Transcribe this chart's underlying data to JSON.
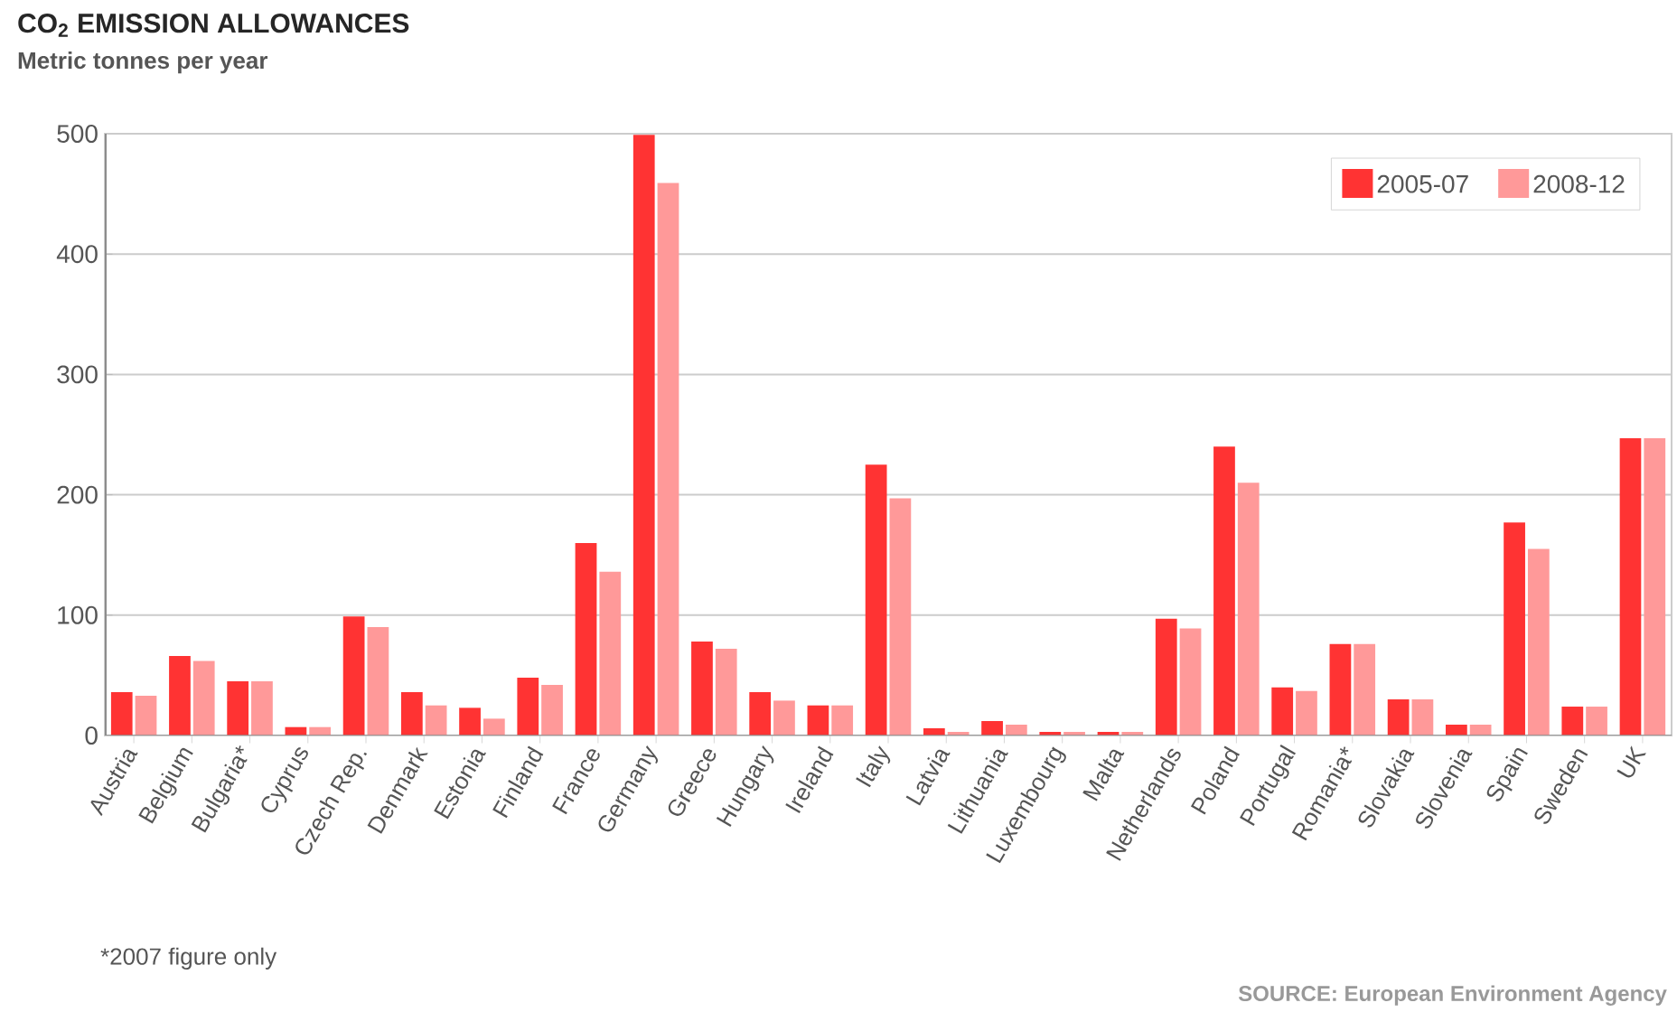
{
  "chart_data": {
    "type": "bar",
    "title": "CO$_{2}$ EMISSION ALLOWANCES",
    "subtitle": "Metric tonnes per year",
    "categories": [
      "Austria",
      "Belgium",
      "Bulgaria*",
      "Cyprus",
      "Czech Rep.",
      "Denmark",
      "Estonia",
      "Finland",
      "France",
      "Germany",
      "Greece",
      "Hungary",
      "Ireland",
      "Italy",
      "Latvia",
      "Lithuania",
      "Luxembourg",
      "Malta",
      "Netherlands",
      "Poland",
      "Portugal",
      "Romania*",
      "Slovakia",
      "Slovenia",
      "Spain",
      "Sweden",
      "UK"
    ],
    "series": [
      {
        "name": "2005-07",
        "color": "#ff3333",
        "values": [
          36,
          66,
          45,
          7,
          99,
          36,
          23,
          48,
          160,
          499,
          78,
          36,
          25,
          225,
          6,
          12,
          3,
          3,
          97,
          240,
          40,
          76,
          30,
          9,
          177,
          24,
          247
        ]
      },
      {
        "name": "2008-12",
        "color": "#ff9999",
        "values": [
          33,
          62,
          45,
          7,
          90,
          25,
          14,
          42,
          136,
          459,
          72,
          29,
          25,
          197,
          3,
          9,
          3,
          3,
          89,
          210,
          37,
          76,
          30,
          9,
          155,
          24,
          247
        ]
      }
    ],
    "ylim": [
      0,
      500
    ],
    "yticks": [
      0,
      100,
      200,
      300,
      400,
      500
    ],
    "grid": "y",
    "legend": "top right",
    "annotations": [
      "*2007 figure only",
      "SOURCE: European Environment Agency"
    ]
  }
}
